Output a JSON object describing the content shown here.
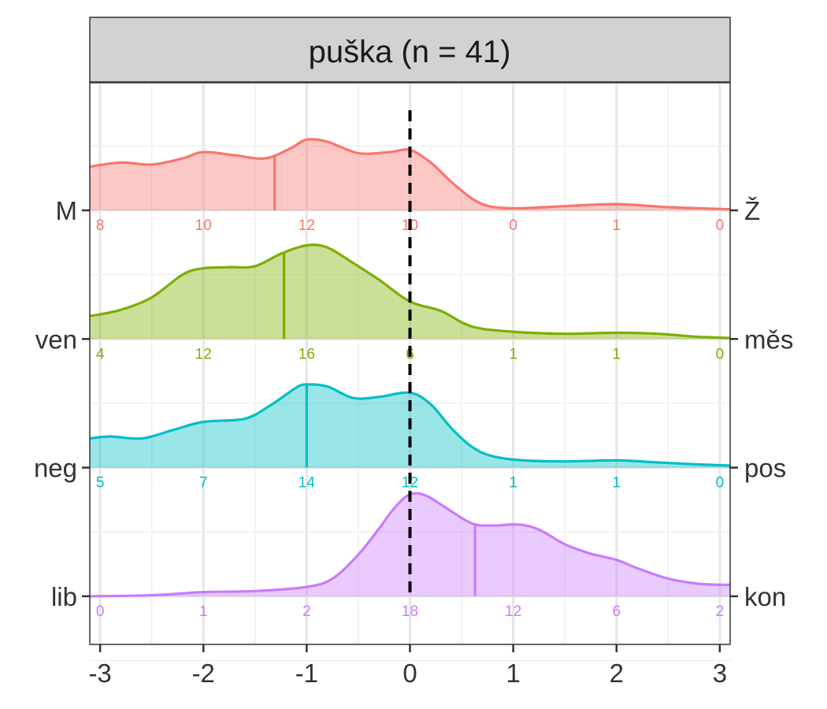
{
  "chart_data": {
    "type": "ridgeline",
    "title": "puška (n = 41)",
    "xlabel": "",
    "ylabel": "",
    "xlim": [
      -3.1,
      3.1
    ],
    "x_ticks": [
      -3,
      -2,
      -1,
      0,
      1,
      2,
      3
    ],
    "x_tick_labels": [
      "-3",
      "-2",
      "-1",
      "0",
      "1",
      "2",
      "3"
    ],
    "reference_line": {
      "x": 0,
      "style": "dashed",
      "color": "#000000"
    },
    "count_positions": [
      -3,
      -2,
      -1,
      0,
      1,
      2,
      3
    ],
    "grid": true,
    "series": [
      {
        "left_label": "lib",
        "right_label": "kon",
        "color": "#C77CFF",
        "mean": 0.63,
        "counts": [
          "0",
          "1",
          "2",
          "18",
          "12",
          "6",
          "2"
        ],
        "density": [
          [
            -3.1,
            0
          ],
          [
            -2.5,
            0.01
          ],
          [
            -2,
            0.04
          ],
          [
            -1.5,
            0.05
          ],
          [
            -1,
            0.09
          ],
          [
            -0.75,
            0.17
          ],
          [
            -0.5,
            0.4
          ],
          [
            -0.3,
            0.65
          ],
          [
            -0.15,
            0.85
          ],
          [
            0,
            0.98
          ],
          [
            0.15,
            0.97
          ],
          [
            0.35,
            0.85
          ],
          [
            0.6,
            0.7
          ],
          [
            0.8,
            0.68
          ],
          [
            1.05,
            0.69
          ],
          [
            1.25,
            0.64
          ],
          [
            1.5,
            0.5
          ],
          [
            1.75,
            0.41
          ],
          [
            2,
            0.35
          ],
          [
            2.2,
            0.27
          ],
          [
            2.5,
            0.17
          ],
          [
            2.8,
            0.12
          ],
          [
            3.1,
            0.11
          ]
        ]
      },
      {
        "left_label": "neg",
        "right_label": "pos",
        "color": "#00BFC4",
        "mean": -1,
        "counts": [
          "5",
          "7",
          "14",
          "12",
          "1",
          "1",
          "0"
        ],
        "density": [
          [
            -3.1,
            0.28
          ],
          [
            -2.9,
            0.3
          ],
          [
            -2.6,
            0.28
          ],
          [
            -2.3,
            0.36
          ],
          [
            -2,
            0.44
          ],
          [
            -1.6,
            0.47
          ],
          [
            -1.35,
            0.6
          ],
          [
            -1.1,
            0.77
          ],
          [
            -1,
            0.8
          ],
          [
            -0.8,
            0.78
          ],
          [
            -0.55,
            0.67
          ],
          [
            -0.3,
            0.68
          ],
          [
            0,
            0.72
          ],
          [
            0.2,
            0.61
          ],
          [
            0.4,
            0.38
          ],
          [
            0.6,
            0.2
          ],
          [
            0.8,
            0.11
          ],
          [
            1.1,
            0.07
          ],
          [
            1.5,
            0.06
          ],
          [
            2,
            0.07
          ],
          [
            2.4,
            0.05
          ],
          [
            2.8,
            0.03
          ],
          [
            3.1,
            0.02
          ]
        ]
      },
      {
        "left_label": "ven",
        "right_label": "měs",
        "color": "#7CAE00",
        "mean": -1.22,
        "counts": [
          "4",
          "12",
          "16",
          "6",
          "1",
          "1",
          "0"
        ],
        "density": [
          [
            -3.1,
            0.22
          ],
          [
            -2.8,
            0.28
          ],
          [
            -2.5,
            0.4
          ],
          [
            -2.2,
            0.62
          ],
          [
            -2,
            0.68
          ],
          [
            -1.75,
            0.69
          ],
          [
            -1.5,
            0.7
          ],
          [
            -1.25,
            0.82
          ],
          [
            -1,
            0.9
          ],
          [
            -0.8,
            0.88
          ],
          [
            -0.55,
            0.73
          ],
          [
            -0.3,
            0.57
          ],
          [
            0,
            0.36
          ],
          [
            0.3,
            0.27
          ],
          [
            0.6,
            0.12
          ],
          [
            1,
            0.07
          ],
          [
            1.5,
            0.05
          ],
          [
            2,
            0.06
          ],
          [
            2.4,
            0.05
          ],
          [
            2.8,
            0.02
          ],
          [
            3.1,
            0.01
          ]
        ]
      },
      {
        "left_label": "M",
        "right_label": "Ž",
        "color": "#F8766D",
        "mean": -1.31,
        "counts": [
          "8",
          "10",
          "12",
          "10",
          "0",
          "1",
          "0"
        ],
        "density": [
          [
            -3.1,
            0.42
          ],
          [
            -2.8,
            0.46
          ],
          [
            -2.5,
            0.44
          ],
          [
            -2.2,
            0.5
          ],
          [
            -2,
            0.56
          ],
          [
            -1.7,
            0.53
          ],
          [
            -1.4,
            0.5
          ],
          [
            -1.15,
            0.6
          ],
          [
            -1,
            0.68
          ],
          [
            -0.8,
            0.66
          ],
          [
            -0.5,
            0.55
          ],
          [
            -0.2,
            0.56
          ],
          [
            0,
            0.58
          ],
          [
            0.2,
            0.46
          ],
          [
            0.45,
            0.23
          ],
          [
            0.7,
            0.06
          ],
          [
            1,
            0.02
          ],
          [
            1.5,
            0.04
          ],
          [
            2,
            0.06
          ],
          [
            2.5,
            0.03
          ],
          [
            3.1,
            0.01
          ]
        ]
      }
    ]
  }
}
